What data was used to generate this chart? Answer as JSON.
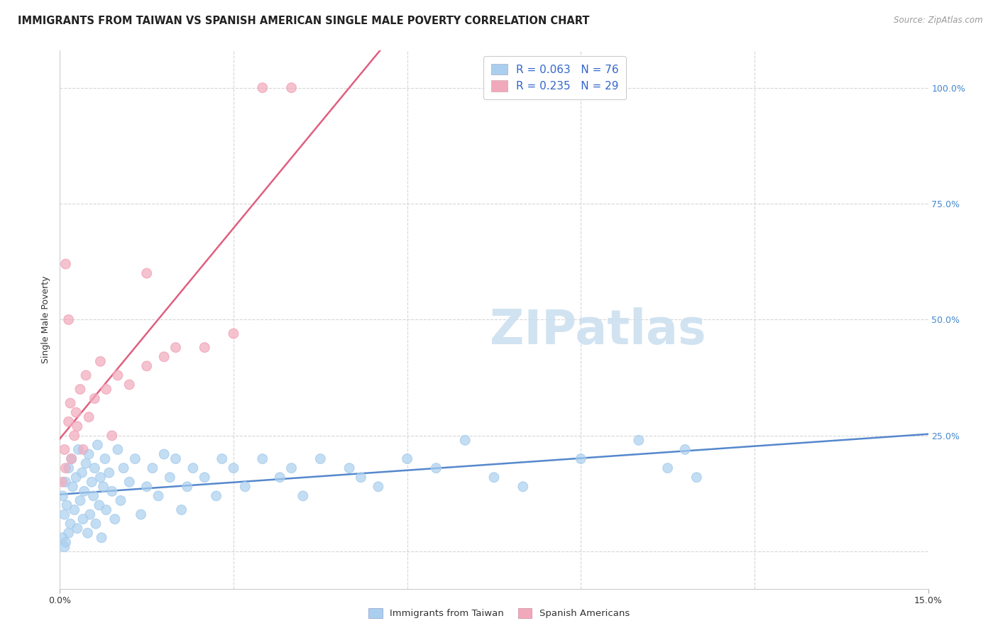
{
  "title": "IMMIGRANTS FROM TAIWAN VS SPANISH AMERICAN SINGLE MALE POVERTY CORRELATION CHART",
  "source": "Source: ZipAtlas.com",
  "ylabel": "Single Male Poverty",
  "xmin": 0.0,
  "xmax": 15.0,
  "ymin": -8.0,
  "ymax": 108.0,
  "y_ticks_vals": [
    0,
    25,
    50,
    75,
    100
  ],
  "y_tick_labels_right": [
    "",
    "25.0%",
    "50.0%",
    "75.0%",
    "100.0%"
  ],
  "legend_R_blue": "R = 0.063",
  "legend_N_blue": "N = 76",
  "legend_R_pink": "R = 0.235",
  "legend_N_pink": "N = 29",
  "legend_series_blue": "Immigrants from Taiwan",
  "legend_series_pink": "Spanish Americans",
  "color_blue_scatter": "#aacfee",
  "color_pink_scatter": "#f2a8bb",
  "color_blue_trend": "#5588cc",
  "color_pink_trend": "#e06080",
  "color_pink_trend_dashed": "#ddaacc",
  "background_color": "#ffffff",
  "grid_color": "#cccccc",
  "title_fontsize": 10.5,
  "source_fontsize": 8.5,
  "axis_label_fontsize": 9,
  "tick_fontsize": 9,
  "watermark_text": "ZIPatlas",
  "watermark_fontsize": 48,
  "watermark_color": "#cce0f0",
  "taiwan_x": [
    0.05,
    0.08,
    0.1,
    0.12,
    0.15,
    0.18,
    0.2,
    0.22,
    0.25,
    0.28,
    0.3,
    0.32,
    0.35,
    0.38,
    0.4,
    0.42,
    0.45,
    0.48,
    0.5,
    0.52,
    0.55,
    0.58,
    0.6,
    0.62,
    0.65,
    0.68,
    0.7,
    0.72,
    0.75,
    0.78,
    0.8,
    0.85,
    0.9,
    0.95,
    1.0,
    1.05,
    1.1,
    1.2,
    1.3,
    1.4,
    1.5,
    1.6,
    1.7,
    1.8,
    1.9,
    2.0,
    2.1,
    2.2,
    2.3,
    2.5,
    2.7,
    2.8,
    3.0,
    3.2,
    3.5,
    3.8,
    4.0,
    4.2,
    4.5,
    5.0,
    5.2,
    5.5,
    6.0,
    6.5,
    7.0,
    7.5,
    8.0,
    9.0,
    10.0,
    10.5,
    10.8,
    11.0,
    0.05,
    0.08,
    0.1,
    0.15
  ],
  "taiwan_y": [
    12,
    8,
    15,
    10,
    18,
    6,
    20,
    14,
    9,
    16,
    5,
    22,
    11,
    17,
    7,
    13,
    19,
    4,
    21,
    8,
    15,
    12,
    18,
    6,
    23,
    10,
    16,
    3,
    14,
    20,
    9,
    17,
    13,
    7,
    22,
    11,
    18,
    15,
    20,
    8,
    14,
    18,
    12,
    21,
    16,
    20,
    9,
    14,
    18,
    16,
    12,
    20,
    18,
    14,
    20,
    16,
    18,
    12,
    20,
    18,
    16,
    14,
    20,
    18,
    24,
    16,
    14,
    20,
    24,
    18,
    22,
    16,
    3,
    1,
    2,
    4
  ],
  "spanish_x": [
    0.05,
    0.08,
    0.1,
    0.15,
    0.18,
    0.2,
    0.25,
    0.28,
    0.3,
    0.35,
    0.4,
    0.45,
    0.5,
    0.6,
    0.7,
    0.8,
    0.9,
    1.0,
    1.2,
    1.5,
    1.8,
    2.0,
    2.5,
    3.0,
    3.5,
    4.0,
    1.5,
    0.1,
    0.15
  ],
  "spanish_y": [
    15,
    22,
    18,
    28,
    32,
    20,
    25,
    30,
    27,
    35,
    22,
    38,
    29,
    33,
    41,
    35,
    25,
    38,
    36,
    40,
    42,
    44,
    44,
    47,
    100,
    100,
    60,
    62,
    50
  ]
}
